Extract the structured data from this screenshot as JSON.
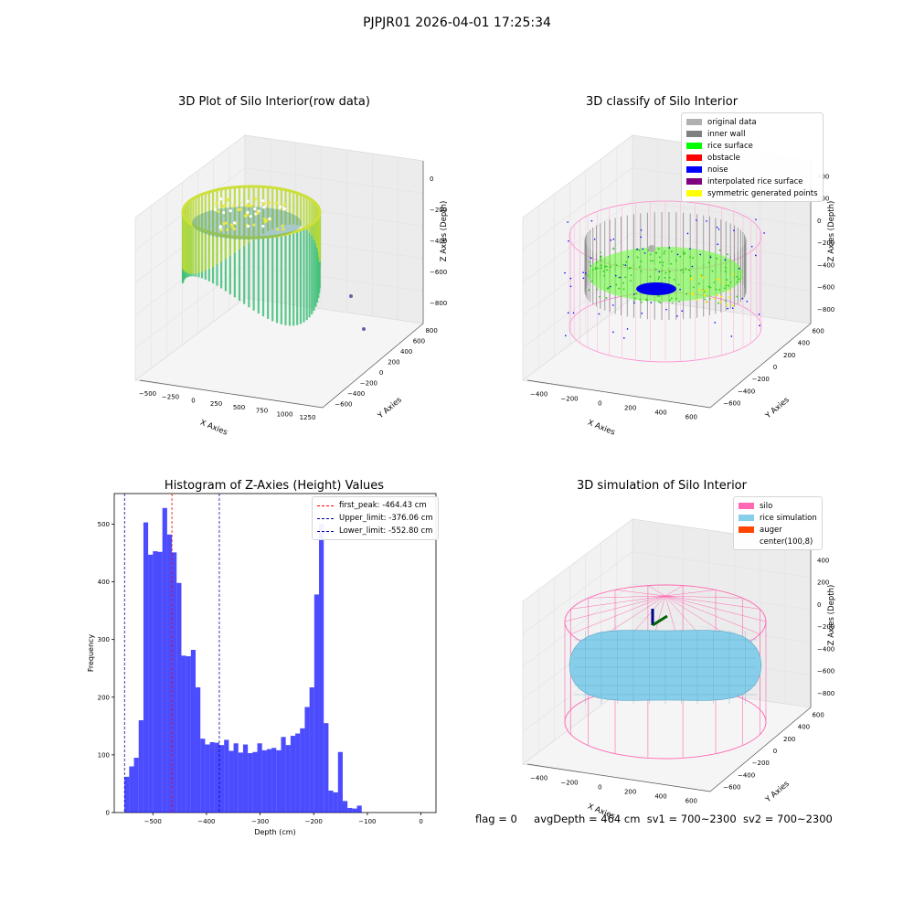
{
  "suptitle": "PJPJR01 2026-04-01 17:25:34",
  "status": {
    "flag": "flag = 0",
    "avg_depth": "avgDepth = 464 cm",
    "sv1": "sv1 = 700~2300",
    "sv2": "sv2 = 700~2300"
  },
  "colors": {
    "hist_bar": "#0000ff",
    "first_peak": "#ff0000",
    "limits": "#0000aa",
    "silo": "#ff69b4",
    "rice": "#87ceeb",
    "auger": "#ff4500"
  },
  "chart_data": [
    {
      "type": "scatter3d",
      "title": "3D Plot of Silo Interior(row data)",
      "xlabel": "X Axies",
      "ylabel": "Y Axies",
      "zlabel": "Z Axies (Depth)",
      "xticks": [
        "−500",
        "−250",
        "0",
        "250",
        "500",
        "750",
        "1000",
        "1250"
      ],
      "yticks": [
        "800",
        "600",
        "400",
        "200",
        "0",
        "−200",
        "−400",
        "−600"
      ],
      "zticks": [
        "0",
        "−200",
        "−400",
        "−600",
        "−800"
      ],
      "colormap": "viridis"
    },
    {
      "type": "scatter3d",
      "title": "3D classify of Silo Interior",
      "xlabel": "X Axies",
      "ylabel": "Y Axies",
      "zlabel": "Z Axies (Depth)",
      "xticks": [
        "−400",
        "−200",
        "0",
        "200",
        "400",
        "600"
      ],
      "yticks": [
        "600",
        "400",
        "200",
        "0",
        "−200",
        "−400",
        "−600"
      ],
      "zticks": [
        "400",
        "200",
        "0",
        "−200",
        "−400",
        "−600",
        "−800"
      ],
      "legend_position": "top-right",
      "legend": [
        {
          "label": "original data",
          "color": "#b0b0b0"
        },
        {
          "label": "inner wall",
          "color": "#808080"
        },
        {
          "label": "rice surface",
          "color": "#00ff00"
        },
        {
          "label": "obstacle",
          "color": "#ff0000"
        },
        {
          "label": "noise",
          "color": "#0000ff"
        },
        {
          "label": "interpolated rice surface",
          "color": "#800080"
        },
        {
          "label": "symmetric generated points",
          "color": "#ffff00"
        }
      ]
    },
    {
      "type": "bar",
      "title": "Histogram of Z-Axies (Height) Values",
      "xlabel": "Depth (cm)",
      "ylabel": "Frequency",
      "xlim": [
        -572,
        28
      ],
      "ylim": [
        0,
        553
      ],
      "xticks": [
        -500,
        -400,
        -300,
        -200,
        -100,
        0
      ],
      "yticks": [
        0,
        100,
        200,
        300,
        400,
        500
      ],
      "bin_start": -553,
      "bin_width": 8.85,
      "values": [
        62,
        80,
        95,
        160,
        503,
        447,
        453,
        452,
        528,
        482,
        451,
        398,
        272,
        271,
        282,
        217,
        128,
        118,
        122,
        121,
        117,
        126,
        107,
        120,
        104,
        118,
        103,
        105,
        120,
        108,
        110,
        112,
        108,
        131,
        117,
        133,
        137,
        146,
        183,
        217,
        378,
        500,
        155,
        38,
        35,
        105,
        20,
        8,
        7,
        12
      ],
      "lines": [
        {
          "label": "first_peak: -464.43 cm",
          "x": -464.43,
          "color": "#ff0000"
        },
        {
          "label": "Upper_limit: -376.06 cm",
          "x": -376.06,
          "color": "#0000aa"
        },
        {
          "label": "Lower_limit: -552.80 cm",
          "x": -552.8,
          "color": "#0000aa"
        }
      ],
      "legend_position": "top-right"
    },
    {
      "type": "surface3d",
      "title": "3D simulation of Silo Interior",
      "xlabel": "X Axies",
      "ylabel": "Y Axies",
      "zlabel": "Z Axies (Depth)",
      "xticks": [
        "−400",
        "−200",
        "0",
        "200",
        "400",
        "600"
      ],
      "yticks": [
        "600",
        "400",
        "200",
        "0",
        "−200",
        "−400",
        "−600"
      ],
      "zticks": [
        "400",
        "200",
        "0",
        "−200",
        "−400",
        "−600",
        "−800"
      ],
      "legend_position": "top-right",
      "legend": [
        {
          "label": "silo",
          "color": "#ff69b4"
        },
        {
          "label": "rice simulation",
          "color": "#87ceeb"
        },
        {
          "label": "auger",
          "color": "#ff4500"
        },
        {
          "label": "center(100,8)",
          "color": ""
        }
      ]
    }
  ]
}
